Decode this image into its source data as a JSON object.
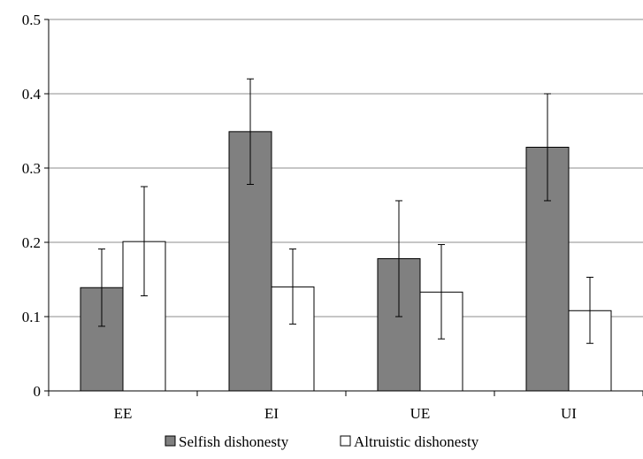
{
  "chart_data": {
    "type": "bar",
    "title": "",
    "xlabel": "",
    "ylabel": "",
    "categories": [
      "EE",
      "EI",
      "UE",
      "UI"
    ],
    "ylim": [
      0,
      0.5
    ],
    "yticks": [
      "0",
      "0.1",
      "0.2",
      "0.3",
      "0.4",
      "0.5"
    ],
    "grid": true,
    "legend_position": "bottom",
    "series": [
      {
        "name": "Selfish dishonesty",
        "color": "#808080",
        "values": [
          0.139,
          0.349,
          0.178,
          0.328
        ],
        "error_low": [
          0.087,
          0.278,
          0.1,
          0.256
        ],
        "error_high": [
          0.191,
          0.42,
          0.256,
          0.4
        ]
      },
      {
        "name": "Altruistic dishonesty",
        "color": "#ffffff",
        "values": [
          0.201,
          0.14,
          0.133,
          0.108
        ],
        "error_low": [
          0.128,
          0.09,
          0.07,
          0.064
        ],
        "error_high": [
          0.275,
          0.191,
          0.197,
          0.153
        ]
      }
    ]
  }
}
